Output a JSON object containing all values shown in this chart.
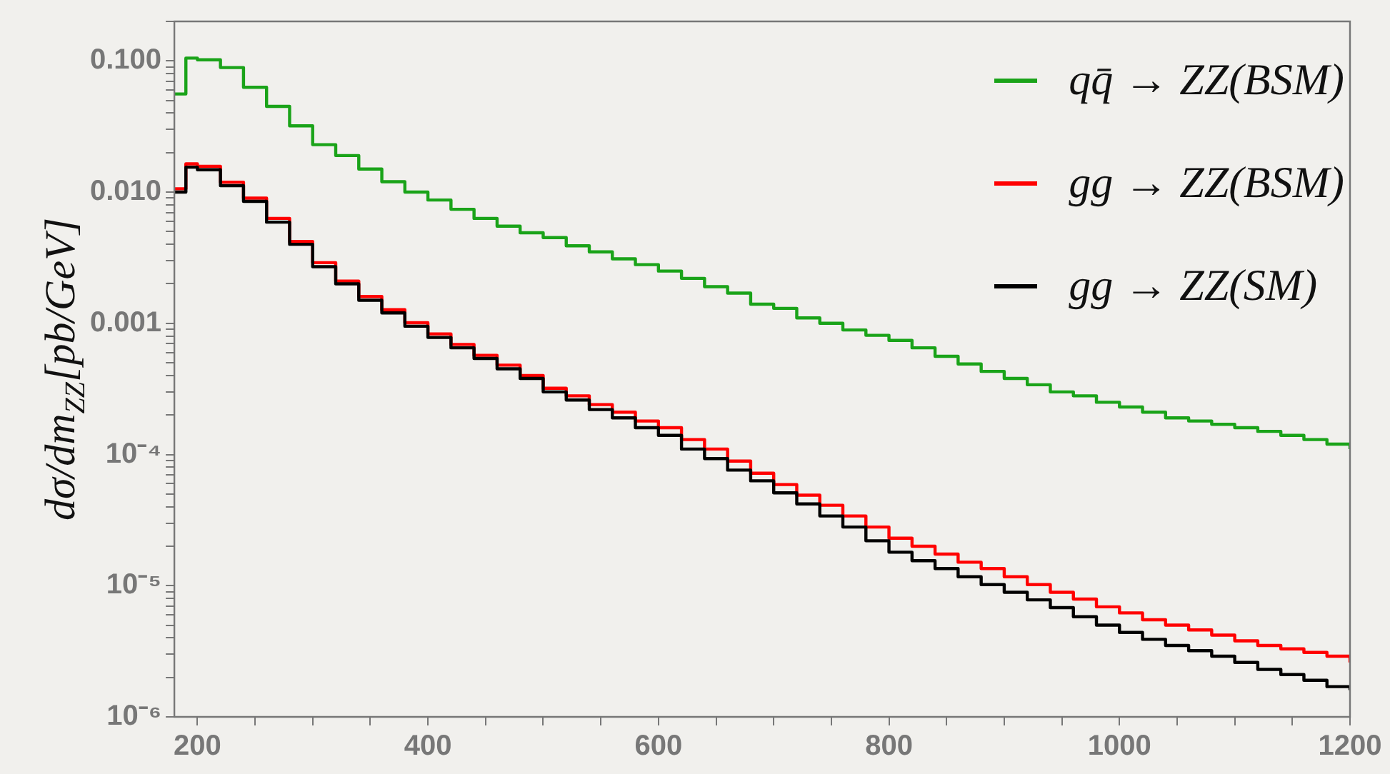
{
  "chart_data": {
    "type": "step",
    "ylabel": "dσ/dm$_{ZZ}$[pb/GeV]",
    "log": true,
    "legend": "top right",
    "grid": false,
    "x": [
      180,
      190,
      200,
      220,
      240,
      260,
      280,
      300,
      320,
      340,
      360,
      380,
      400,
      420,
      440,
      460,
      480,
      500,
      520,
      540,
      560,
      580,
      600,
      620,
      640,
      660,
      680,
      700,
      720,
      740,
      760,
      780,
      800,
      820,
      840,
      860,
      880,
      900,
      920,
      940,
      960,
      980,
      1000,
      1020,
      1040,
      1060,
      1080,
      1100,
      1120,
      1140,
      1160,
      1180,
      1200
    ],
    "xlim": [
      180,
      1200
    ],
    "xticks": [
      200,
      {
        "value": 250,
        "label": null
      },
      {
        "value": 300,
        "label": null
      },
      {
        "value": 350,
        "label": null
      },
      400,
      {
        "value": 450,
        "label": null
      },
      {
        "value": 500,
        "label": null
      },
      {
        "value": 550,
        "label": null
      },
      600,
      {
        "value": 650,
        "label": null
      },
      {
        "value": 700,
        "label": null
      },
      {
        "value": 750,
        "label": null
      },
      800,
      {
        "value": 850,
        "label": null
      },
      {
        "value": 900,
        "label": null
      },
      {
        "value": 950,
        "label": null
      },
      1000,
      {
        "value": 1050,
        "label": null
      },
      {
        "value": 1100,
        "label": null
      },
      {
        "value": 1150,
        "label": null
      },
      1200
    ],
    "ylim": [
      1e-06,
      0.2
    ],
    "yticks": [
      {
        "value": 1e-06,
        "label": "10⁻⁶"
      },
      {
        "value": 2e-06,
        "label": null
      },
      {
        "value": 3e-06,
        "label": null
      },
      {
        "value": 4e-06,
        "label": null
      },
      {
        "value": 5e-06,
        "label": null
      },
      {
        "value": 6e-06,
        "label": null
      },
      {
        "value": 7e-06,
        "label": null
      },
      {
        "value": 8e-06,
        "label": null
      },
      {
        "value": 9e-06,
        "label": null
      },
      {
        "value": 1e-05,
        "label": "10⁻⁵"
      },
      {
        "value": 2e-05,
        "label": null
      },
      {
        "value": 3e-05,
        "label": null
      },
      {
        "value": 4e-05,
        "label": null
      },
      {
        "value": 5e-05,
        "label": null
      },
      {
        "value": 6e-05,
        "label": null
      },
      {
        "value": 7e-05,
        "label": null
      },
      {
        "value": 8e-05,
        "label": null
      },
      {
        "value": 9e-05,
        "label": null
      },
      {
        "value": 0.0001,
        "label": "10⁻⁴"
      },
      {
        "value": 0.0002,
        "label": null
      },
      {
        "value": 0.0003,
        "label": null
      },
      {
        "value": 0.0004,
        "label": null
      },
      {
        "value": 0.0005,
        "label": null
      },
      {
        "value": 0.0006,
        "label": null
      },
      {
        "value": 0.0007,
        "label": null
      },
      {
        "value": 0.0008,
        "label": null
      },
      {
        "value": 0.0009,
        "label": null
      },
      {
        "value": 0.001,
        "label": "0.001"
      },
      {
        "value": 0.002,
        "label": null
      },
      {
        "value": 0.003,
        "label": null
      },
      {
        "value": 0.004,
        "label": null
      },
      {
        "value": 0.005,
        "label": null
      },
      {
        "value": 0.006,
        "label": null
      },
      {
        "value": 0.007,
        "label": null
      },
      {
        "value": 0.008,
        "label": null
      },
      {
        "value": 0.009,
        "label": null
      },
      {
        "value": 0.01,
        "label": "0.010"
      },
      {
        "value": 0.02,
        "label": null
      },
      {
        "value": 0.03,
        "label": null
      },
      {
        "value": 0.04,
        "label": null
      },
      {
        "value": 0.05,
        "label": null
      },
      {
        "value": 0.06,
        "label": null
      },
      {
        "value": 0.07,
        "label": null
      },
      {
        "value": 0.08,
        "label": null
      },
      {
        "value": 0.09,
        "label": null
      },
      {
        "value": 0.1,
        "label": "0.100"
      },
      {
        "value": 0.2,
        "label": null
      }
    ],
    "series": [
      {
        "name": "qq̄ → ZZ(BSM)",
        "color": "#1aa319",
        "values": [
          0.056,
          0.105,
          0.102,
          0.089,
          0.063,
          0.045,
          0.032,
          0.023,
          0.019,
          0.015,
          0.012,
          0.01,
          0.0087,
          0.0074,
          0.0063,
          0.0055,
          0.0049,
          0.0045,
          0.0039,
          0.0035,
          0.0031,
          0.0028,
          0.0025,
          0.0022,
          0.0019,
          0.0017,
          0.0014,
          0.0013,
          0.0011,
          0.001,
          0.00089,
          0.00081,
          0.00074,
          0.00065,
          0.00056,
          0.00049,
          0.00043,
          0.00038,
          0.00034,
          0.0003,
          0.00028,
          0.00025,
          0.00023,
          0.00021,
          0.00019,
          0.00018,
          0.00017,
          0.00016,
          0.00015,
          0.00014,
          0.00013,
          0.00012,
          0.00011
        ]
      },
      {
        "name": "gg → ZZ(BSM)",
        "color": "#ff0000",
        "values": [
          0.0106,
          0.0164,
          0.0157,
          0.0119,
          0.009,
          0.0063,
          0.0042,
          0.0029,
          0.0021,
          0.0016,
          0.00127,
          0.00101,
          0.00083,
          0.00069,
          0.00057,
          0.00048,
          0.0004,
          0.00032,
          0.00028,
          0.00024,
          0.00021,
          0.00018,
          0.00016,
          0.00013,
          0.00011,
          8.9e-05,
          7.2e-05,
          5.9e-05,
          4.9e-05,
          4.1e-05,
          3.4e-05,
          2.8e-05,
          2.3e-05,
          2e-05,
          1.74e-05,
          1.51e-05,
          1.35e-05,
          1.17e-05,
          1.02e-05,
          8.9e-06,
          7.9e-06,
          6.9e-06,
          6.2e-06,
          5.5e-06,
          5e-06,
          4.6e-06,
          4.2e-06,
          3.8e-06,
          3.5e-06,
          3.3e-06,
          3.1e-06,
          2.9e-06,
          2.6e-06
        ]
      },
      {
        "name": "gg → ZZ(SM)",
        "color": "#000000",
        "values": [
          0.01,
          0.0155,
          0.0148,
          0.0112,
          0.0085,
          0.0059,
          0.004,
          0.0027,
          0.002,
          0.0015,
          0.0012,
          0.00095,
          0.00078,
          0.00065,
          0.00054,
          0.00045,
          0.00038,
          0.0003,
          0.00026,
          0.00022,
          0.00019,
          0.00016,
          0.00014,
          0.00011,
          9.3e-05,
          7.6e-05,
          6.3e-05,
          5.1e-05,
          4.2e-05,
          3.4e-05,
          2.8e-05,
          2.2e-05,
          1.8e-05,
          1.55e-05,
          1.35e-05,
          1.17e-05,
          1.02e-05,
          8.9e-06,
          7.8e-06,
          6.8e-06,
          5.8e-06,
          5e-06,
          4.4e-06,
          3.9e-06,
          3.5e-06,
          3.2e-06,
          2.9e-06,
          2.6e-06,
          2.3e-06,
          2.1e-06,
          1.9e-06,
          1.7e-06,
          1.6e-06
        ]
      }
    ]
  }
}
